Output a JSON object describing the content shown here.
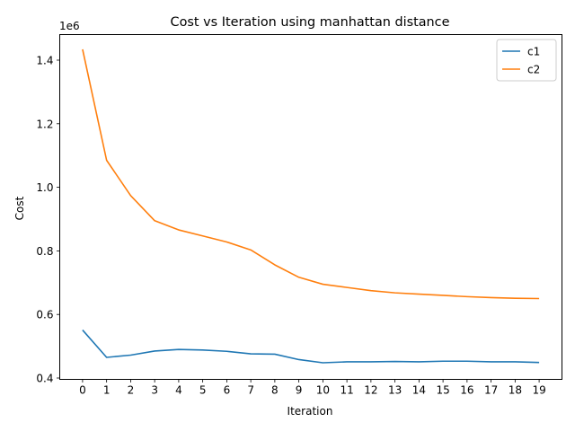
{
  "chart_data": {
    "type": "line",
    "title": "Cost vs Iteration using manhattan distance",
    "xlabel": "Iteration",
    "ylabel": "Cost",
    "y_offset_label": "1e6",
    "x": [
      0,
      1,
      2,
      3,
      4,
      5,
      6,
      7,
      8,
      9,
      10,
      11,
      12,
      13,
      14,
      15,
      16,
      17,
      18,
      19
    ],
    "ylim": [
      0.4,
      1.47
    ],
    "yticks": [
      0.4,
      0.6,
      0.8,
      1.0,
      1.2,
      1.4
    ],
    "ytick_labels": [
      "0.4",
      "0.6",
      "0.8",
      "1.0",
      "1.2",
      "1.4"
    ],
    "grid": false,
    "legend_position": "top-right",
    "series": [
      {
        "name": "c1",
        "color": "#1f77b4",
        "values": [
          0.551,
          0.465,
          0.472,
          0.485,
          0.49,
          0.488,
          0.484,
          0.476,
          0.475,
          0.458,
          0.448,
          0.451,
          0.451,
          0.452,
          0.451,
          0.453,
          0.453,
          0.451,
          0.451,
          0.449
        ]
      },
      {
        "name": "c2",
        "color": "#ff7f0e",
        "values": [
          1.434,
          1.085,
          0.974,
          0.895,
          0.866,
          0.847,
          0.828,
          0.803,
          0.756,
          0.717,
          0.695,
          0.685,
          0.675,
          0.668,
          0.664,
          0.66,
          0.656,
          0.653,
          0.651,
          0.65
        ]
      }
    ]
  }
}
